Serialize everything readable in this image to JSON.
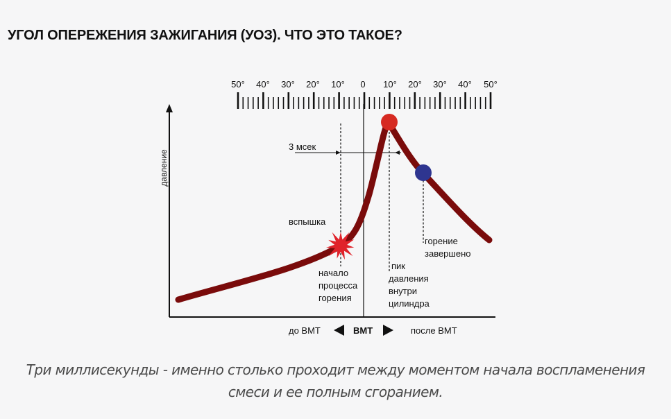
{
  "heading": "УГОЛ ОПЕРЕЖЕНИЯ ЗАЖИГАНИЯ (УОЗ). ЧТО ЭТО ТАКОЕ?",
  "diagram": {
    "scale_labels": [
      "50°",
      "40°",
      "30°",
      "20°",
      "10°",
      "0",
      "10°",
      "20°",
      "30°",
      "40°",
      "50°"
    ],
    "y_axis_label": "давление",
    "time_label": "3 мсек",
    "flash_label": "вспышка",
    "combustion_start": [
      "начало",
      "процесса",
      "горения"
    ],
    "pressure_peak": [
      "пик",
      "давления",
      "внутри",
      "цилиндра"
    ],
    "combustion_end": [
      "горение",
      "завершено"
    ],
    "before_label": "до ВМТ",
    "tdc_label": "ВМТ",
    "after_label": "после ВМТ",
    "colors": {
      "curve": "#7a0b0b",
      "peak_marker": "#d62a22",
      "end_marker": "#2e3590",
      "flash": "#e0222a"
    }
  },
  "caption": {
    "line1": "Три миллисекунды - именно столько проходит между моментом начала воспламенения",
    "line2": "смеси и ее полным сгоранием."
  }
}
